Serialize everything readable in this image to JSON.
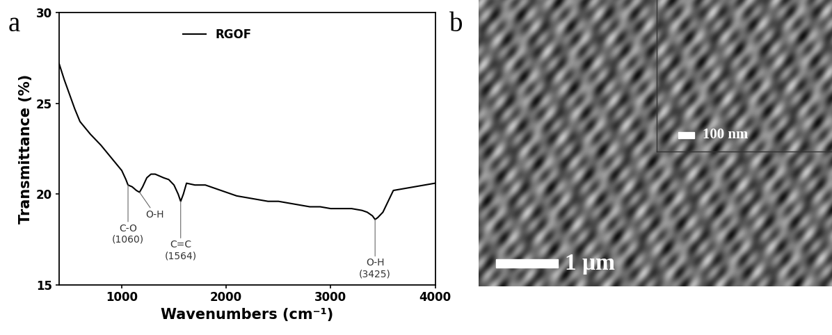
{
  "chart_data": [
    {
      "type": "line",
      "panel_label": "a",
      "x_label": "Wavenumbers (cm⁻¹)",
      "y_label": "Transmittance (%)",
      "xlim": [
        400,
        4000
      ],
      "xticks": [
        1000,
        2000,
        3000,
        4000
      ],
      "ylim": [
        15,
        30
      ],
      "yticks": [
        15,
        20,
        25,
        30
      ],
      "legend": "upper center",
      "grid": false,
      "series": [
        {
          "name": "RGOF",
          "color": "#000000",
          "x": [
            400,
            450,
            500,
            550,
            600,
            700,
            800,
            900,
            1000,
            1040,
            1060,
            1100,
            1140,
            1170,
            1200,
            1240,
            1280,
            1320,
            1360,
            1400,
            1450,
            1500,
            1540,
            1564,
            1590,
            1620,
            1700,
            1800,
            1900,
            2000,
            2100,
            2200,
            2300,
            2400,
            2500,
            2600,
            2700,
            2800,
            2900,
            3000,
            3100,
            3200,
            3300,
            3350,
            3400,
            3425,
            3450,
            3500,
            3550,
            3600,
            3700,
            3800,
            3900,
            4000
          ],
          "values": [
            27.2,
            26.3,
            25.5,
            24.7,
            24.0,
            23.3,
            22.7,
            22.0,
            21.3,
            20.8,
            20.5,
            20.4,
            20.2,
            20.1,
            20.4,
            20.9,
            21.1,
            21.1,
            21.0,
            20.9,
            20.8,
            20.5,
            20.0,
            19.6,
            20.0,
            20.6,
            20.5,
            20.5,
            20.3,
            20.1,
            19.9,
            19.8,
            19.7,
            19.6,
            19.6,
            19.5,
            19.4,
            19.3,
            19.3,
            19.2,
            19.2,
            19.2,
            19.1,
            19.0,
            18.8,
            18.6,
            18.7,
            19.0,
            19.6,
            20.2,
            20.3,
            20.4,
            20.5,
            20.6
          ]
        }
      ],
      "annotations": [
        {
          "text": "C-O\n(1060)",
          "x": 1060,
          "y": 20.5
        },
        {
          "text": "O-H",
          "x": 1170,
          "y": 20.1
        },
        {
          "text": "C=C\n(1564)",
          "x": 1564,
          "y": 19.6
        },
        {
          "text": "O-H\n(3425)",
          "x": 3425,
          "y": 18.6
        }
      ]
    },
    {
      "type": "image",
      "panel_label": "b",
      "scale_bar": "1 μm",
      "inset_scale_bar": "100 nm"
    }
  ]
}
